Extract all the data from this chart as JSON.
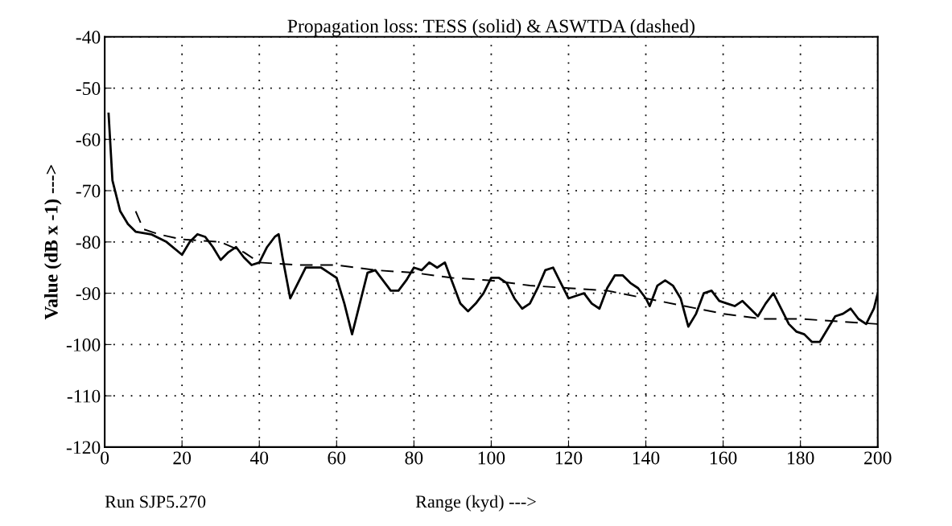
{
  "chart_data": {
    "type": "line",
    "title": "Propagation loss: TESS (solid) & ASWTDA (dashed)",
    "xlabel": "Range (kyd) --->",
    "ylabel": "Value (dB x -1) --->",
    "annotations": [
      "Run SJP5.270"
    ],
    "xlim": [
      0,
      200
    ],
    "xticks": [
      0,
      20,
      40,
      60,
      80,
      100,
      120,
      140,
      160,
      180,
      200
    ],
    "ylim": [
      -120,
      -40
    ],
    "yticks": [
      -120,
      -110,
      -100,
      -90,
      -80,
      -70,
      -60,
      -50,
      -40
    ],
    "grid": true,
    "legend": false,
    "series": [
      {
        "color": "#000000",
        "line_style": "solid",
        "x": [
          1,
          2,
          4,
          6,
          8,
          12,
          16,
          20,
          22,
          24,
          26,
          28,
          30,
          32,
          34,
          36,
          38,
          40,
          42,
          44,
          45,
          46,
          48,
          50,
          52,
          56,
          58,
          60,
          62,
          64,
          66,
          68,
          70,
          72,
          74,
          76,
          78,
          80,
          82,
          84,
          86,
          88,
          90,
          92,
          94,
          96,
          98,
          100,
          102,
          104,
          106,
          108,
          110,
          112,
          114,
          116,
          118,
          120,
          122,
          124,
          126,
          128,
          130,
          132,
          134,
          136,
          138,
          140,
          141,
          143,
          145,
          147,
          149,
          151,
          153,
          155,
          157,
          159,
          161,
          163,
          165,
          167,
          169,
          171,
          173,
          175,
          177,
          179,
          181,
          183,
          185,
          187,
          189,
          191,
          193,
          195,
          197,
          199,
          200
        ],
        "values": [
          -55,
          -68,
          -74,
          -76.5,
          -78,
          -78.5,
          -80,
          -82.5,
          -80,
          -78.5,
          -79,
          -81,
          -83.5,
          -82,
          -81,
          -83,
          -84.5,
          -84,
          -81,
          -79,
          -78.5,
          -83,
          -91,
          -88,
          -85,
          -85,
          -86,
          -87,
          -92,
          -98,
          -92,
          -86,
          -85.5,
          -87.5,
          -89.5,
          -89.5,
          -87.5,
          -85,
          -85.5,
          -84,
          -85,
          -84,
          -88,
          -92,
          -93.5,
          -92,
          -90,
          -87,
          -87,
          -88,
          -91,
          -93,
          -92,
          -89,
          -85.5,
          -85,
          -88,
          -91,
          -90.5,
          -90,
          -92,
          -93,
          -89,
          -86.5,
          -86.5,
          -88,
          -89,
          -91,
          -92.5,
          -88.5,
          -87.5,
          -88.5,
          -91,
          -96.5,
          -94,
          -90,
          -89.5,
          -91.5,
          -92,
          -92.5,
          -91.5,
          -93,
          -94.5,
          -92,
          -90,
          -93,
          -96,
          -97.5,
          -98,
          -99.5,
          -99.5,
          -97,
          -94.5,
          -94,
          -93,
          -95,
          -96,
          -93,
          -90
        ]
      },
      {
        "color": "#000000",
        "line_style": "dashed",
        "x": [
          8,
          10,
          14,
          20,
          30,
          36,
          40,
          50,
          60,
          70,
          80,
          90,
          100,
          110,
          120,
          130,
          140,
          150,
          160,
          170,
          180,
          190,
          200
        ],
        "values": [
          -74,
          -77.5,
          -78.5,
          -79.5,
          -80,
          -82,
          -84,
          -84.5,
          -84.5,
          -85.5,
          -86,
          -87,
          -87.5,
          -88.5,
          -89,
          -89.5,
          -91,
          -92.5,
          -94,
          -95,
          -95,
          -95.5,
          -96
        ]
      }
    ]
  }
}
